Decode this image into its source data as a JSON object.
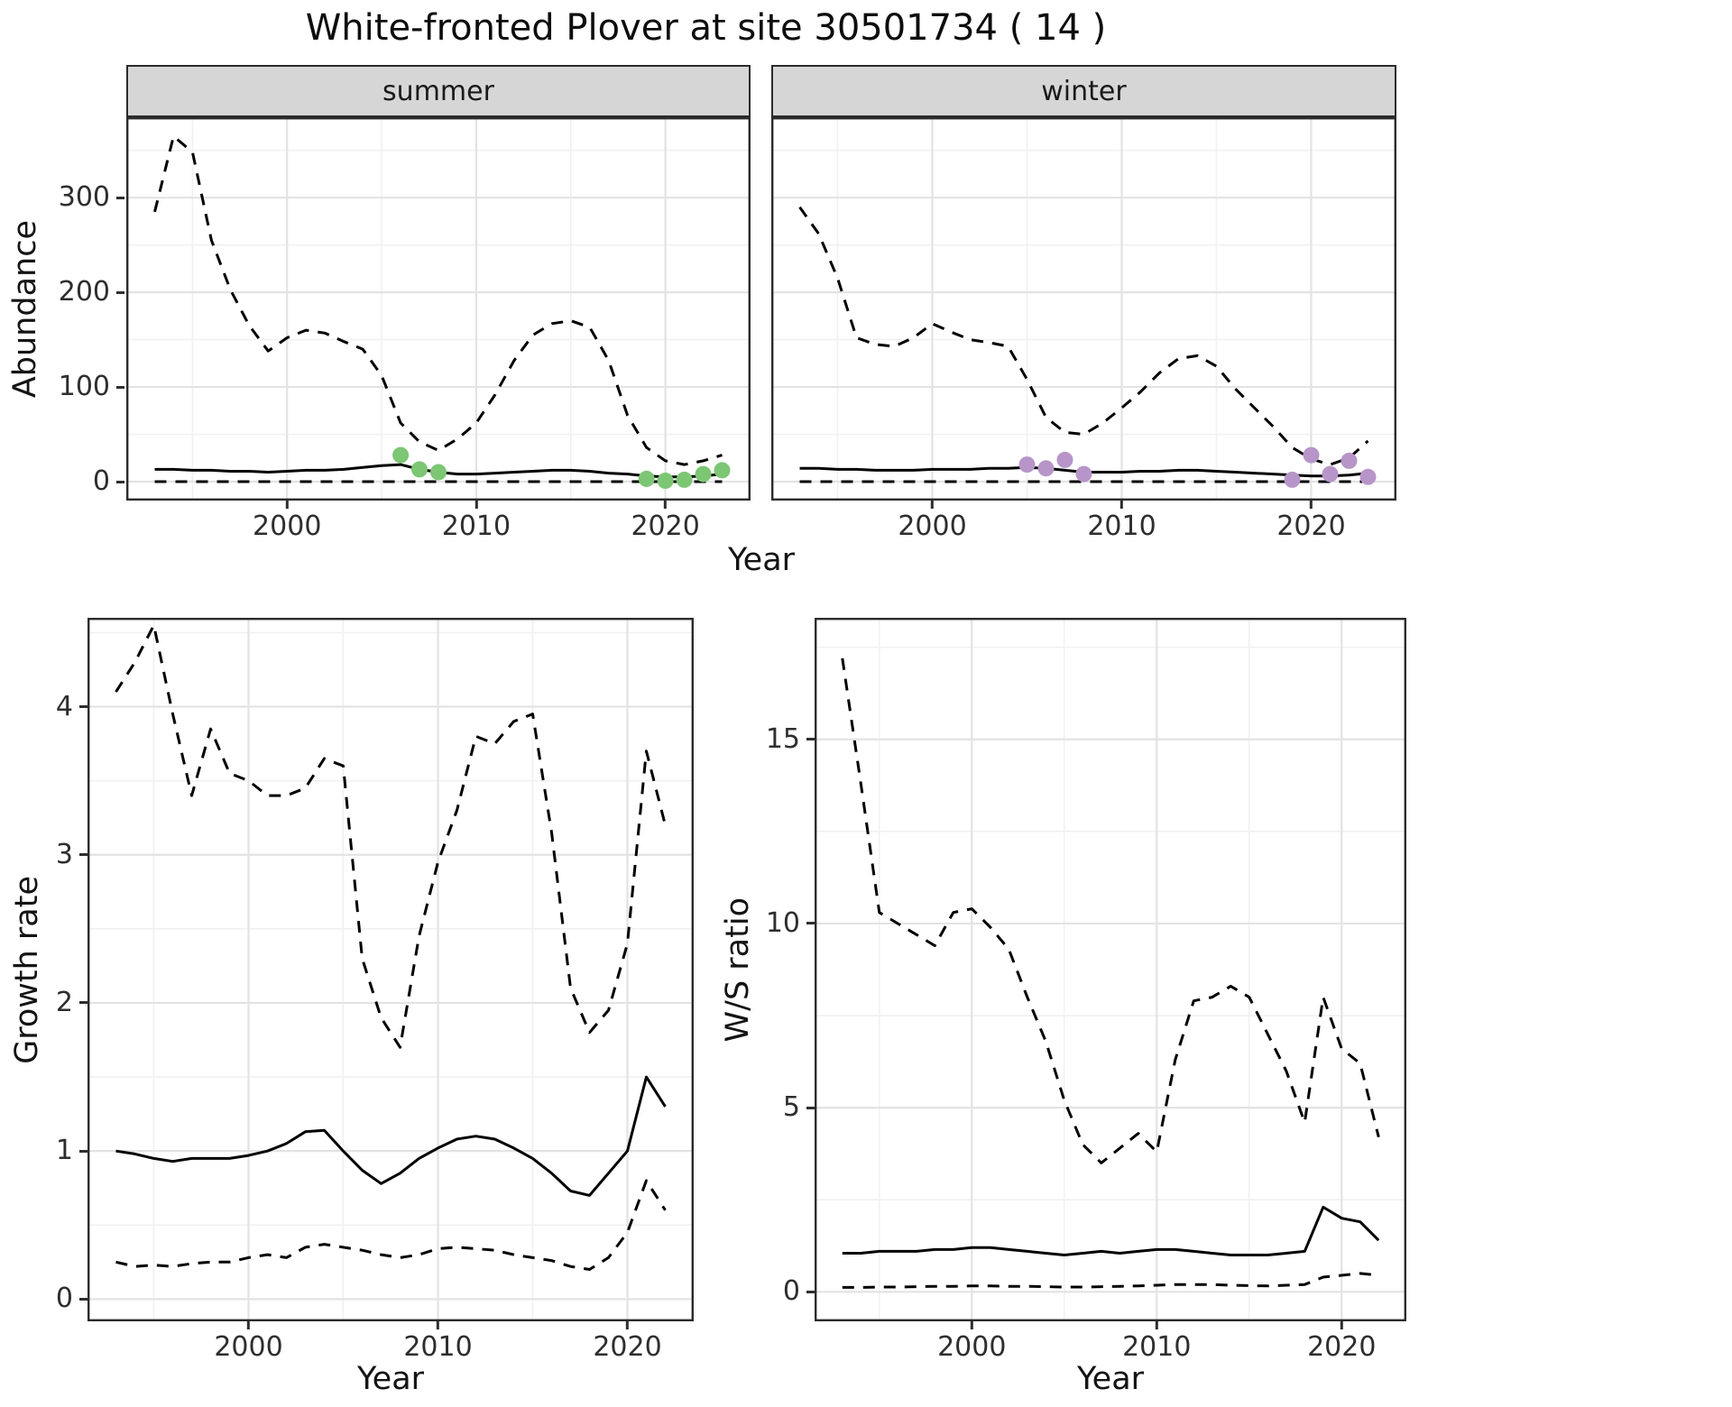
{
  "page": {
    "title": "White-fronted Plover at site 30501734 ( 14 )"
  },
  "colors": {
    "line": "#000000",
    "summer_points": "#7CC674",
    "winter_points": "#B795C8",
    "strip_bg": "#D6D6D6",
    "grid_major": "#E3E3E3",
    "grid_minor": "#F1F1F1",
    "panel_border": "#2B2B2B"
  },
  "chart_data": [
    {
      "id": "abundance_summer",
      "type": "line",
      "facet_label": "summer",
      "ylabel": "Abundance",
      "xlabel": "Year",
      "xlim": [
        1991.5,
        2024.5
      ],
      "ylim": [
        -20,
        385
      ],
      "xticks": [
        2000,
        2010,
        2020
      ],
      "yticks": [
        0,
        100,
        200,
        300
      ],
      "grid": true,
      "legend": "none",
      "years": [
        1993,
        1994,
        1995,
        1996,
        1997,
        1998,
        1999,
        2000,
        2001,
        2002,
        2003,
        2004,
        2005,
        2006,
        2007,
        2008,
        2009,
        2010,
        2011,
        2012,
        2013,
        2014,
        2015,
        2016,
        2017,
        2018,
        2019,
        2020,
        2021,
        2022,
        2023
      ],
      "series": [
        {
          "name": "upper_ci",
          "style": "dashed",
          "values": [
            285,
            365,
            348,
            255,
            203,
            165,
            138,
            152,
            160,
            157,
            148,
            140,
            112,
            62,
            42,
            33,
            45,
            62,
            92,
            128,
            155,
            167,
            170,
            163,
            128,
            70,
            36,
            22,
            18,
            22,
            28
          ]
        },
        {
          "name": "median",
          "style": "solid",
          "values": [
            13,
            13,
            12,
            12,
            11,
            11,
            10,
            11,
            12,
            12,
            13,
            15,
            17,
            18,
            13,
            10,
            8,
            8,
            9,
            10,
            11,
            12,
            12,
            11,
            9,
            8,
            6,
            5,
            5,
            6,
            8
          ]
        },
        {
          "name": "lower_ci",
          "style": "dashed",
          "values": [
            0,
            0,
            0,
            0,
            0,
            0,
            0,
            0,
            0,
            0,
            0,
            0,
            0,
            0,
            0,
            0,
            0,
            0,
            0,
            0,
            0,
            0,
            0,
            0,
            0,
            0,
            0,
            0,
            0,
            0,
            0
          ]
        }
      ],
      "points": {
        "name": "observed_counts_summer",
        "color": "#7CC674",
        "x": [
          2006,
          2007,
          2008,
          2019,
          2020,
          2021,
          2022,
          2023
        ],
        "y": [
          28,
          13,
          10,
          3,
          1,
          2,
          8,
          12
        ]
      }
    },
    {
      "id": "abundance_winter",
      "type": "line",
      "facet_label": "winter",
      "ylabel": "Abundance",
      "xlabel": "Year",
      "xlim": [
        1991.5,
        2024.5
      ],
      "ylim": [
        -20,
        385
      ],
      "xticks": [
        2000,
        2010,
        2020
      ],
      "yticks": [
        0,
        100,
        200,
        300
      ],
      "grid": true,
      "legend": "none",
      "years": [
        1993,
        1994,
        1995,
        1996,
        1997,
        1998,
        1999,
        2000,
        2001,
        2002,
        2003,
        2004,
        2005,
        2006,
        2007,
        2008,
        2009,
        2010,
        2011,
        2012,
        2013,
        2014,
        2015,
        2016,
        2017,
        2018,
        2019,
        2020,
        2021,
        2022,
        2023
      ],
      "series": [
        {
          "name": "upper_ci",
          "style": "dashed",
          "values": [
            290,
            262,
            215,
            152,
            145,
            143,
            152,
            167,
            158,
            150,
            147,
            143,
            108,
            68,
            52,
            50,
            62,
            78,
            95,
            115,
            130,
            133,
            122,
            98,
            78,
            58,
            36,
            24,
            18,
            25,
            43
          ]
        },
        {
          "name": "median",
          "style": "solid",
          "values": [
            14,
            14,
            13,
            13,
            12,
            12,
            12,
            13,
            13,
            13,
            14,
            14,
            15,
            14,
            12,
            10,
            10,
            10,
            11,
            11,
            12,
            12,
            11,
            10,
            9,
            8,
            7,
            6,
            6,
            7,
            9
          ]
        },
        {
          "name": "lower_ci",
          "style": "dashed",
          "values": [
            0,
            0,
            0,
            0,
            0,
            0,
            0,
            0,
            0,
            0,
            0,
            0,
            0,
            0,
            0,
            0,
            0,
            0,
            0,
            0,
            0,
            0,
            0,
            0,
            0,
            0,
            0,
            0,
            0,
            0,
            0
          ]
        }
      ],
      "points": {
        "name": "observed_counts_winter",
        "color": "#B795C8",
        "x": [
          2005,
          2006,
          2007,
          2008,
          2019,
          2020,
          2021,
          2022,
          2023
        ],
        "y": [
          18,
          14,
          23,
          8,
          2,
          28,
          8,
          22,
          5
        ]
      }
    },
    {
      "id": "growth_rate",
      "type": "line",
      "facet_label": "",
      "ylabel": "Growth rate",
      "xlabel": "Year",
      "xlim": [
        1991.5,
        2023.5
      ],
      "ylim": [
        -0.15,
        4.6
      ],
      "xticks": [
        2000,
        2010,
        2020
      ],
      "yticks": [
        0,
        1,
        2,
        3,
        4
      ],
      "grid": true,
      "legend": "none",
      "years": [
        1993,
        1994,
        1995,
        1996,
        1997,
        1998,
        1999,
        2000,
        2001,
        2002,
        2003,
        2004,
        2005,
        2006,
        2007,
        2008,
        2009,
        2010,
        2011,
        2012,
        2013,
        2014,
        2015,
        2016,
        2017,
        2018,
        2019,
        2020,
        2021,
        2022
      ],
      "series": [
        {
          "name": "upper_ci",
          "style": "dashed",
          "values": [
            4.1,
            4.3,
            4.55,
            3.95,
            3.4,
            3.85,
            3.55,
            3.5,
            3.4,
            3.4,
            3.45,
            3.65,
            3.6,
            2.3,
            1.9,
            1.7,
            2.45,
            2.95,
            3.3,
            3.8,
            3.75,
            3.9,
            3.95,
            3.15,
            2.1,
            1.8,
            1.95,
            2.4,
            3.7,
            3.2
          ]
        },
        {
          "name": "median",
          "style": "solid",
          "values": [
            1.0,
            0.98,
            0.95,
            0.93,
            0.95,
            0.95,
            0.95,
            0.97,
            1.0,
            1.05,
            1.13,
            1.14,
            1.0,
            0.87,
            0.78,
            0.85,
            0.95,
            1.02,
            1.08,
            1.1,
            1.08,
            1.02,
            0.95,
            0.85,
            0.73,
            0.7,
            0.85,
            1.0,
            1.5,
            1.3
          ]
        },
        {
          "name": "lower_ci",
          "style": "dashed",
          "values": [
            0.25,
            0.22,
            0.23,
            0.22,
            0.24,
            0.25,
            0.25,
            0.28,
            0.3,
            0.28,
            0.35,
            0.37,
            0.35,
            0.33,
            0.3,
            0.28,
            0.3,
            0.34,
            0.35,
            0.34,
            0.33,
            0.3,
            0.28,
            0.26,
            0.22,
            0.2,
            0.28,
            0.45,
            0.8,
            0.6
          ]
        }
      ]
    },
    {
      "id": "ws_ratio",
      "type": "line",
      "facet_label": "",
      "ylabel": "W/S ratio",
      "xlabel": "Year",
      "xlim": [
        1991.5,
        2023.5
      ],
      "ylim": [
        -0.8,
        18.3
      ],
      "xticks": [
        2000,
        2010,
        2020
      ],
      "yticks": [
        0,
        5,
        10,
        15
      ],
      "grid": true,
      "legend": "none",
      "years": [
        1993,
        1994,
        1995,
        1996,
        1997,
        1998,
        1999,
        2000,
        2001,
        2002,
        2003,
        2004,
        2005,
        2006,
        2007,
        2008,
        2009,
        2010,
        2011,
        2012,
        2013,
        2014,
        2015,
        2016,
        2017,
        2018,
        2019,
        2020,
        2021,
        2022
      ],
      "series": [
        {
          "name": "upper_ci",
          "style": "dashed",
          "values": [
            17.2,
            13.8,
            10.3,
            10.0,
            9.7,
            9.4,
            10.3,
            10.4,
            9.9,
            9.3,
            8.0,
            6.8,
            5.2,
            4.0,
            3.5,
            3.9,
            4.3,
            3.8,
            6.3,
            7.9,
            8.0,
            8.3,
            8.0,
            7.0,
            6.0,
            4.6,
            8.0,
            6.6,
            6.2,
            4.2
          ]
        },
        {
          "name": "median",
          "style": "solid",
          "values": [
            1.05,
            1.05,
            1.1,
            1.1,
            1.1,
            1.15,
            1.15,
            1.2,
            1.2,
            1.15,
            1.1,
            1.05,
            1.0,
            1.05,
            1.1,
            1.05,
            1.1,
            1.15,
            1.15,
            1.1,
            1.05,
            1.0,
            1.0,
            1.0,
            1.05,
            1.1,
            2.3,
            2.0,
            1.9,
            1.4
          ]
        },
        {
          "name": "lower_ci",
          "style": "dashed",
          "values": [
            0.12,
            0.12,
            0.13,
            0.13,
            0.14,
            0.15,
            0.15,
            0.16,
            0.16,
            0.15,
            0.15,
            0.14,
            0.13,
            0.13,
            0.14,
            0.15,
            0.16,
            0.18,
            0.2,
            0.2,
            0.2,
            0.18,
            0.17,
            0.16,
            0.18,
            0.2,
            0.4,
            0.45,
            0.5,
            0.45
          ]
        }
      ]
    }
  ]
}
